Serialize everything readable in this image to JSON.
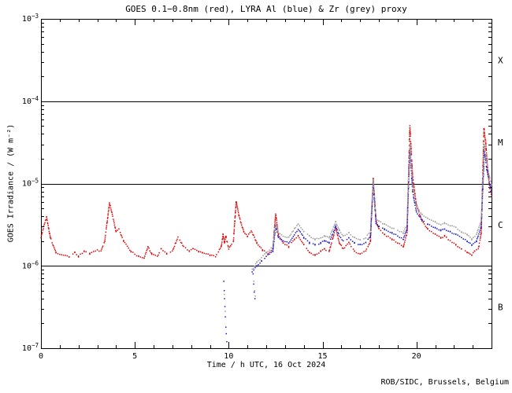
{
  "chart_data": {
    "type": "scatter",
    "title": "GOES 0.1−0.8nm (red), LYRA Al (blue) & Zr (grey) proxy",
    "xlabel": "Time / h UTC, 16 Oct 2024",
    "ylabel": "GOES Irradiance / (W m⁻²)",
    "attribution": "ROB/SIDC, Brussels, Belgium",
    "xlim": [
      0,
      24
    ],
    "x_major_ticks": [
      0,
      5,
      10,
      15,
      20
    ],
    "x_minor_step": 1,
    "y_exponent_range": [
      -7,
      -3
    ],
    "y_major_exponents": [
      -3,
      -4,
      -5,
      -6,
      -7
    ],
    "hline_exponents": [
      -4,
      -5,
      -6
    ],
    "grid": "off",
    "legend": "none",
    "flare_class_labels": [
      {
        "label": "X",
        "band_exponents": [
          -4,
          -3
        ]
      },
      {
        "label": "M",
        "band_exponents": [
          -5,
          -4
        ]
      },
      {
        "label": "C",
        "band_exponents": [
          -6,
          -5
        ]
      },
      {
        "label": "B",
        "band_exponents": [
          -7,
          -6
        ]
      }
    ],
    "colors": {
      "goes_red": "#e00000",
      "lyra_al_blue": "#1515cc",
      "lyra_zr_grey": "#9a9a9a",
      "axis": "#000000"
    },
    "series": [
      {
        "name": "GOES 0.1-0.8nm",
        "color_key": "goes_red",
        "anchors": [
          [
            0.0,
            2.2e-06
          ],
          [
            0.15,
            3e-06
          ],
          [
            0.3,
            3.9e-06
          ],
          [
            0.5,
            2.2e-06
          ],
          [
            0.8,
            1.45e-06
          ],
          [
            1.2,
            1.35e-06
          ],
          [
            1.5,
            1.3e-06
          ],
          [
            1.8,
            1.45e-06
          ],
          [
            2.0,
            1.3e-06
          ],
          [
            2.3,
            1.5e-06
          ],
          [
            2.6,
            1.4e-06
          ],
          [
            3.0,
            1.55e-06
          ],
          [
            3.2,
            1.5e-06
          ],
          [
            3.4,
            2e-06
          ],
          [
            3.65,
            5.8e-06
          ],
          [
            3.8,
            4.2e-06
          ],
          [
            4.0,
            2.6e-06
          ],
          [
            4.15,
            2.8e-06
          ],
          [
            4.4,
            2e-06
          ],
          [
            4.8,
            1.5e-06
          ],
          [
            5.2,
            1.3e-06
          ],
          [
            5.5,
            1.25e-06
          ],
          [
            5.7,
            1.7e-06
          ],
          [
            5.9,
            1.4e-06
          ],
          [
            6.2,
            1.3e-06
          ],
          [
            6.4,
            1.6e-06
          ],
          [
            6.7,
            1.4e-06
          ],
          [
            7.0,
            1.5e-06
          ],
          [
            7.3,
            2.25e-06
          ],
          [
            7.6,
            1.7e-06
          ],
          [
            7.9,
            1.5e-06
          ],
          [
            8.1,
            1.6e-06
          ],
          [
            8.4,
            1.5e-06
          ],
          [
            8.6,
            1.45e-06
          ],
          [
            9.0,
            1.35e-06
          ],
          [
            9.3,
            1.3e-06
          ],
          [
            9.6,
            1.7e-06
          ],
          [
            9.7,
            2.4e-06
          ],
          [
            9.78,
            1.9e-06
          ],
          [
            9.85,
            2.3e-06
          ],
          [
            10.0,
            1.6e-06
          ],
          [
            10.25,
            2e-06
          ],
          [
            10.4,
            6.1e-06
          ],
          [
            10.55,
            4e-06
          ],
          [
            10.8,
            2.6e-06
          ],
          [
            11.0,
            2.3e-06
          ],
          [
            11.2,
            2.7e-06
          ],
          [
            11.5,
            1.9e-06
          ],
          [
            11.8,
            1.55e-06
          ],
          [
            12.1,
            1.4e-06
          ],
          [
            12.35,
            1.6e-06
          ],
          [
            12.5,
            4.3e-06
          ],
          [
            12.65,
            2.4e-06
          ],
          [
            12.9,
            1.9e-06
          ],
          [
            13.2,
            1.7e-06
          ],
          [
            13.5,
            2.1e-06
          ],
          [
            13.7,
            2.3e-06
          ],
          [
            14.0,
            1.8e-06
          ],
          [
            14.3,
            1.45e-06
          ],
          [
            14.6,
            1.35e-06
          ],
          [
            14.9,
            1.5e-06
          ],
          [
            15.1,
            1.6e-06
          ],
          [
            15.35,
            1.5e-06
          ],
          [
            15.7,
            2.9e-06
          ],
          [
            15.9,
            1.9e-06
          ],
          [
            16.1,
            1.6e-06
          ],
          [
            16.4,
            1.9e-06
          ],
          [
            16.7,
            1.5e-06
          ],
          [
            17.0,
            1.4e-06
          ],
          [
            17.3,
            1.5e-06
          ],
          [
            17.55,
            2e-06
          ],
          [
            17.7,
            1.15e-05
          ],
          [
            17.85,
            3.5e-06
          ],
          [
            18.0,
            2.8e-06
          ],
          [
            18.3,
            2.4e-06
          ],
          [
            18.7,
            2.1e-06
          ],
          [
            19.0,
            1.9e-06
          ],
          [
            19.3,
            1.7e-06
          ],
          [
            19.5,
            2.5e-06
          ],
          [
            19.65,
            5e-05
          ],
          [
            19.8,
            1.2e-05
          ],
          [
            20.0,
            5.5e-06
          ],
          [
            20.3,
            3.5e-06
          ],
          [
            20.6,
            2.8e-06
          ],
          [
            21.0,
            2.4e-06
          ],
          [
            21.3,
            2.2e-06
          ],
          [
            21.5,
            2.3e-06
          ],
          [
            21.8,
            2e-06
          ],
          [
            22.1,
            1.8e-06
          ],
          [
            22.4,
            1.6e-06
          ],
          [
            22.7,
            1.45e-06
          ],
          [
            22.95,
            1.35e-06
          ],
          [
            23.1,
            1.5e-06
          ],
          [
            23.3,
            1.6e-06
          ],
          [
            23.45,
            2.5e-06
          ],
          [
            23.6,
            4.7e-05
          ],
          [
            23.7,
            3e-05
          ],
          [
            23.8,
            1.4e-05
          ],
          [
            23.9,
            9e-06
          ],
          [
            24.0,
            7e-06
          ]
        ],
        "scatter": []
      },
      {
        "name": "LYRA Al proxy",
        "color_key": "lyra_al_blue",
        "anchors": [
          [
            11.25,
            8.5e-07
          ],
          [
            11.5,
            1e-06
          ],
          [
            11.75,
            1.15e-06
          ],
          [
            12.0,
            1.3e-06
          ],
          [
            12.35,
            1.5e-06
          ],
          [
            12.5,
            3e-06
          ],
          [
            12.65,
            2.2e-06
          ],
          [
            12.9,
            2e-06
          ],
          [
            13.2,
            1.9e-06
          ],
          [
            13.5,
            2.4e-06
          ],
          [
            13.7,
            2.8e-06
          ],
          [
            14.0,
            2.2e-06
          ],
          [
            14.3,
            1.9e-06
          ],
          [
            14.6,
            1.8e-06
          ],
          [
            14.9,
            1.9e-06
          ],
          [
            15.1,
            2e-06
          ],
          [
            15.35,
            1.9e-06
          ],
          [
            15.7,
            3e-06
          ],
          [
            15.9,
            2.3e-06
          ],
          [
            16.1,
            2e-06
          ],
          [
            16.4,
            2.2e-06
          ],
          [
            16.7,
            1.9e-06
          ],
          [
            17.0,
            1.8e-06
          ],
          [
            17.3,
            1.9e-06
          ],
          [
            17.55,
            2.3e-06
          ],
          [
            17.7,
            1e-05
          ],
          [
            17.85,
            3.3e-06
          ],
          [
            18.0,
            3e-06
          ],
          [
            18.3,
            2.8e-06
          ],
          [
            18.7,
            2.5e-06
          ],
          [
            19.0,
            2.3e-06
          ],
          [
            19.3,
            2.1e-06
          ],
          [
            19.5,
            2.8e-06
          ],
          [
            19.65,
            2.6e-05
          ],
          [
            19.8,
            8e-06
          ],
          [
            20.0,
            4.5e-06
          ],
          [
            20.3,
            3.6e-06
          ],
          [
            20.6,
            3.2e-06
          ],
          [
            21.0,
            2.9e-06
          ],
          [
            21.3,
            2.7e-06
          ],
          [
            21.5,
            2.8e-06
          ],
          [
            21.8,
            2.6e-06
          ],
          [
            22.1,
            2.4e-06
          ],
          [
            22.4,
            2.2e-06
          ],
          [
            22.7,
            2e-06
          ],
          [
            22.95,
            1.8e-06
          ],
          [
            23.2,
            2e-06
          ],
          [
            23.45,
            3e-06
          ],
          [
            23.62,
            2.5e-05
          ],
          [
            23.75,
            1.5e-05
          ],
          [
            23.9,
            1e-05
          ],
          [
            24.0,
            8e-06
          ]
        ],
        "scatter": [
          [
            9.74,
            6.5e-07
          ],
          [
            9.76,
            5e-07
          ],
          [
            9.78,
            4e-07
          ],
          [
            9.8,
            3.2e-07
          ],
          [
            9.82,
            2.4e-07
          ],
          [
            9.85,
            1.8e-07
          ],
          [
            9.87,
            1.5e-07
          ],
          [
            9.9,
            1.2e-07
          ],
          [
            11.3,
            8e-07
          ],
          [
            11.33,
            6e-07
          ],
          [
            11.36,
            4.8e-07
          ],
          [
            11.4,
            4e-07
          ]
        ]
      },
      {
        "name": "LYRA Zr proxy",
        "color_key": "lyra_zr_grey",
        "anchors": [
          [
            11.25,
            9e-07
          ],
          [
            11.5,
            1.1e-06
          ],
          [
            11.75,
            1.25e-06
          ],
          [
            12.0,
            1.45e-06
          ],
          [
            12.35,
            1.7e-06
          ],
          [
            12.5,
            3.3e-06
          ],
          [
            12.65,
            2.5e-06
          ],
          [
            12.9,
            2.3e-06
          ],
          [
            13.2,
            2.2e-06
          ],
          [
            13.5,
            2.8e-06
          ],
          [
            13.7,
            3.2e-06
          ],
          [
            14.0,
            2.6e-06
          ],
          [
            14.3,
            2.3e-06
          ],
          [
            14.6,
            2.1e-06
          ],
          [
            14.9,
            2.2e-06
          ],
          [
            15.1,
            2.3e-06
          ],
          [
            15.35,
            2.2e-06
          ],
          [
            15.7,
            3.4e-06
          ],
          [
            15.9,
            2.7e-06
          ],
          [
            16.1,
            2.3e-06
          ],
          [
            16.4,
            2.5e-06
          ],
          [
            16.7,
            2.2e-06
          ],
          [
            17.0,
            2.1e-06
          ],
          [
            17.3,
            2.2e-06
          ],
          [
            17.55,
            2.6e-06
          ],
          [
            17.7,
            1.1e-05
          ],
          [
            17.85,
            3.8e-06
          ],
          [
            18.0,
            3.5e-06
          ],
          [
            18.3,
            3.2e-06
          ],
          [
            18.7,
            2.9e-06
          ],
          [
            19.0,
            2.7e-06
          ],
          [
            19.3,
            2.5e-06
          ],
          [
            19.5,
            3.2e-06
          ],
          [
            19.65,
            3e-05
          ],
          [
            19.8,
            9e-06
          ],
          [
            20.0,
            5.2e-06
          ],
          [
            20.3,
            4.2e-06
          ],
          [
            20.6,
            3.8e-06
          ],
          [
            21.0,
            3.4e-06
          ],
          [
            21.3,
            3.2e-06
          ],
          [
            21.5,
            3.3e-06
          ],
          [
            21.8,
            3.1e-06
          ],
          [
            22.1,
            2.9e-06
          ],
          [
            22.4,
            2.6e-06
          ],
          [
            22.7,
            2.4e-06
          ],
          [
            22.95,
            2.1e-06
          ],
          [
            23.2,
            2.4e-06
          ],
          [
            23.45,
            3.5e-06
          ],
          [
            23.62,
            3e-05
          ],
          [
            23.75,
            1.8e-05
          ],
          [
            23.9,
            1.2e-05
          ],
          [
            24.0,
            9.5e-06
          ]
        ],
        "scatter": [
          [
            9.77,
            4.5e-07
          ],
          [
            9.81,
            2.8e-07
          ],
          [
            11.34,
            6.5e-07
          ],
          [
            11.38,
            5e-07
          ],
          [
            11.42,
            4.3e-07
          ]
        ]
      }
    ]
  }
}
